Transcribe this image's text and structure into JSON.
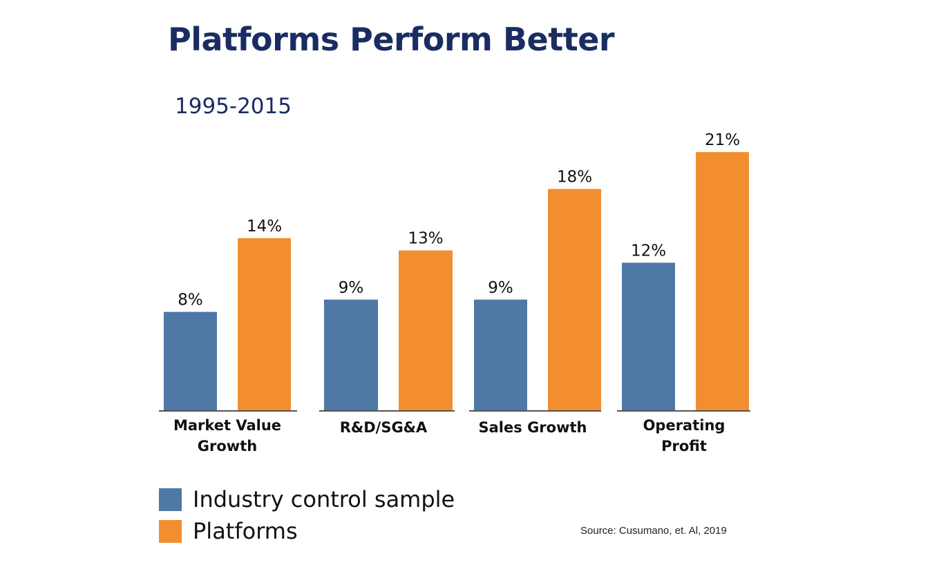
{
  "title": "Platforms Perform Better",
  "subtitle": "1995-2015",
  "source": "Source: Cusumano, et. Al, 2019",
  "colors": {
    "industry": "#4e78a6",
    "platforms": "#f28e30",
    "title": "#1a2d62"
  },
  "legend": [
    {
      "label": "Industry control sample",
      "color": "#4e78a6"
    },
    {
      "label": "Platforms",
      "color": "#f28e30"
    }
  ],
  "chart_data": {
    "type": "bar",
    "categories": [
      [
        "Market Value",
        "Growth"
      ],
      [
        "R&D/SG&A"
      ],
      [
        "Sales Growth"
      ],
      [
        "Operating",
        "Profit"
      ]
    ],
    "series": [
      {
        "name": "Industry control sample",
        "values": [
          8,
          9,
          9,
          12
        ],
        "labels": [
          "8%",
          "9%",
          "9%",
          "12%"
        ],
        "color": "#4e78a6"
      },
      {
        "name": "Platforms",
        "values": [
          14,
          13,
          18,
          21
        ],
        "labels": [
          "14%",
          "13%",
          "18%",
          "21%"
        ],
        "color": "#f28e30"
      }
    ],
    "ylim": [
      0,
      21
    ],
    "grid": false,
    "legend_position": "bottom-left"
  }
}
